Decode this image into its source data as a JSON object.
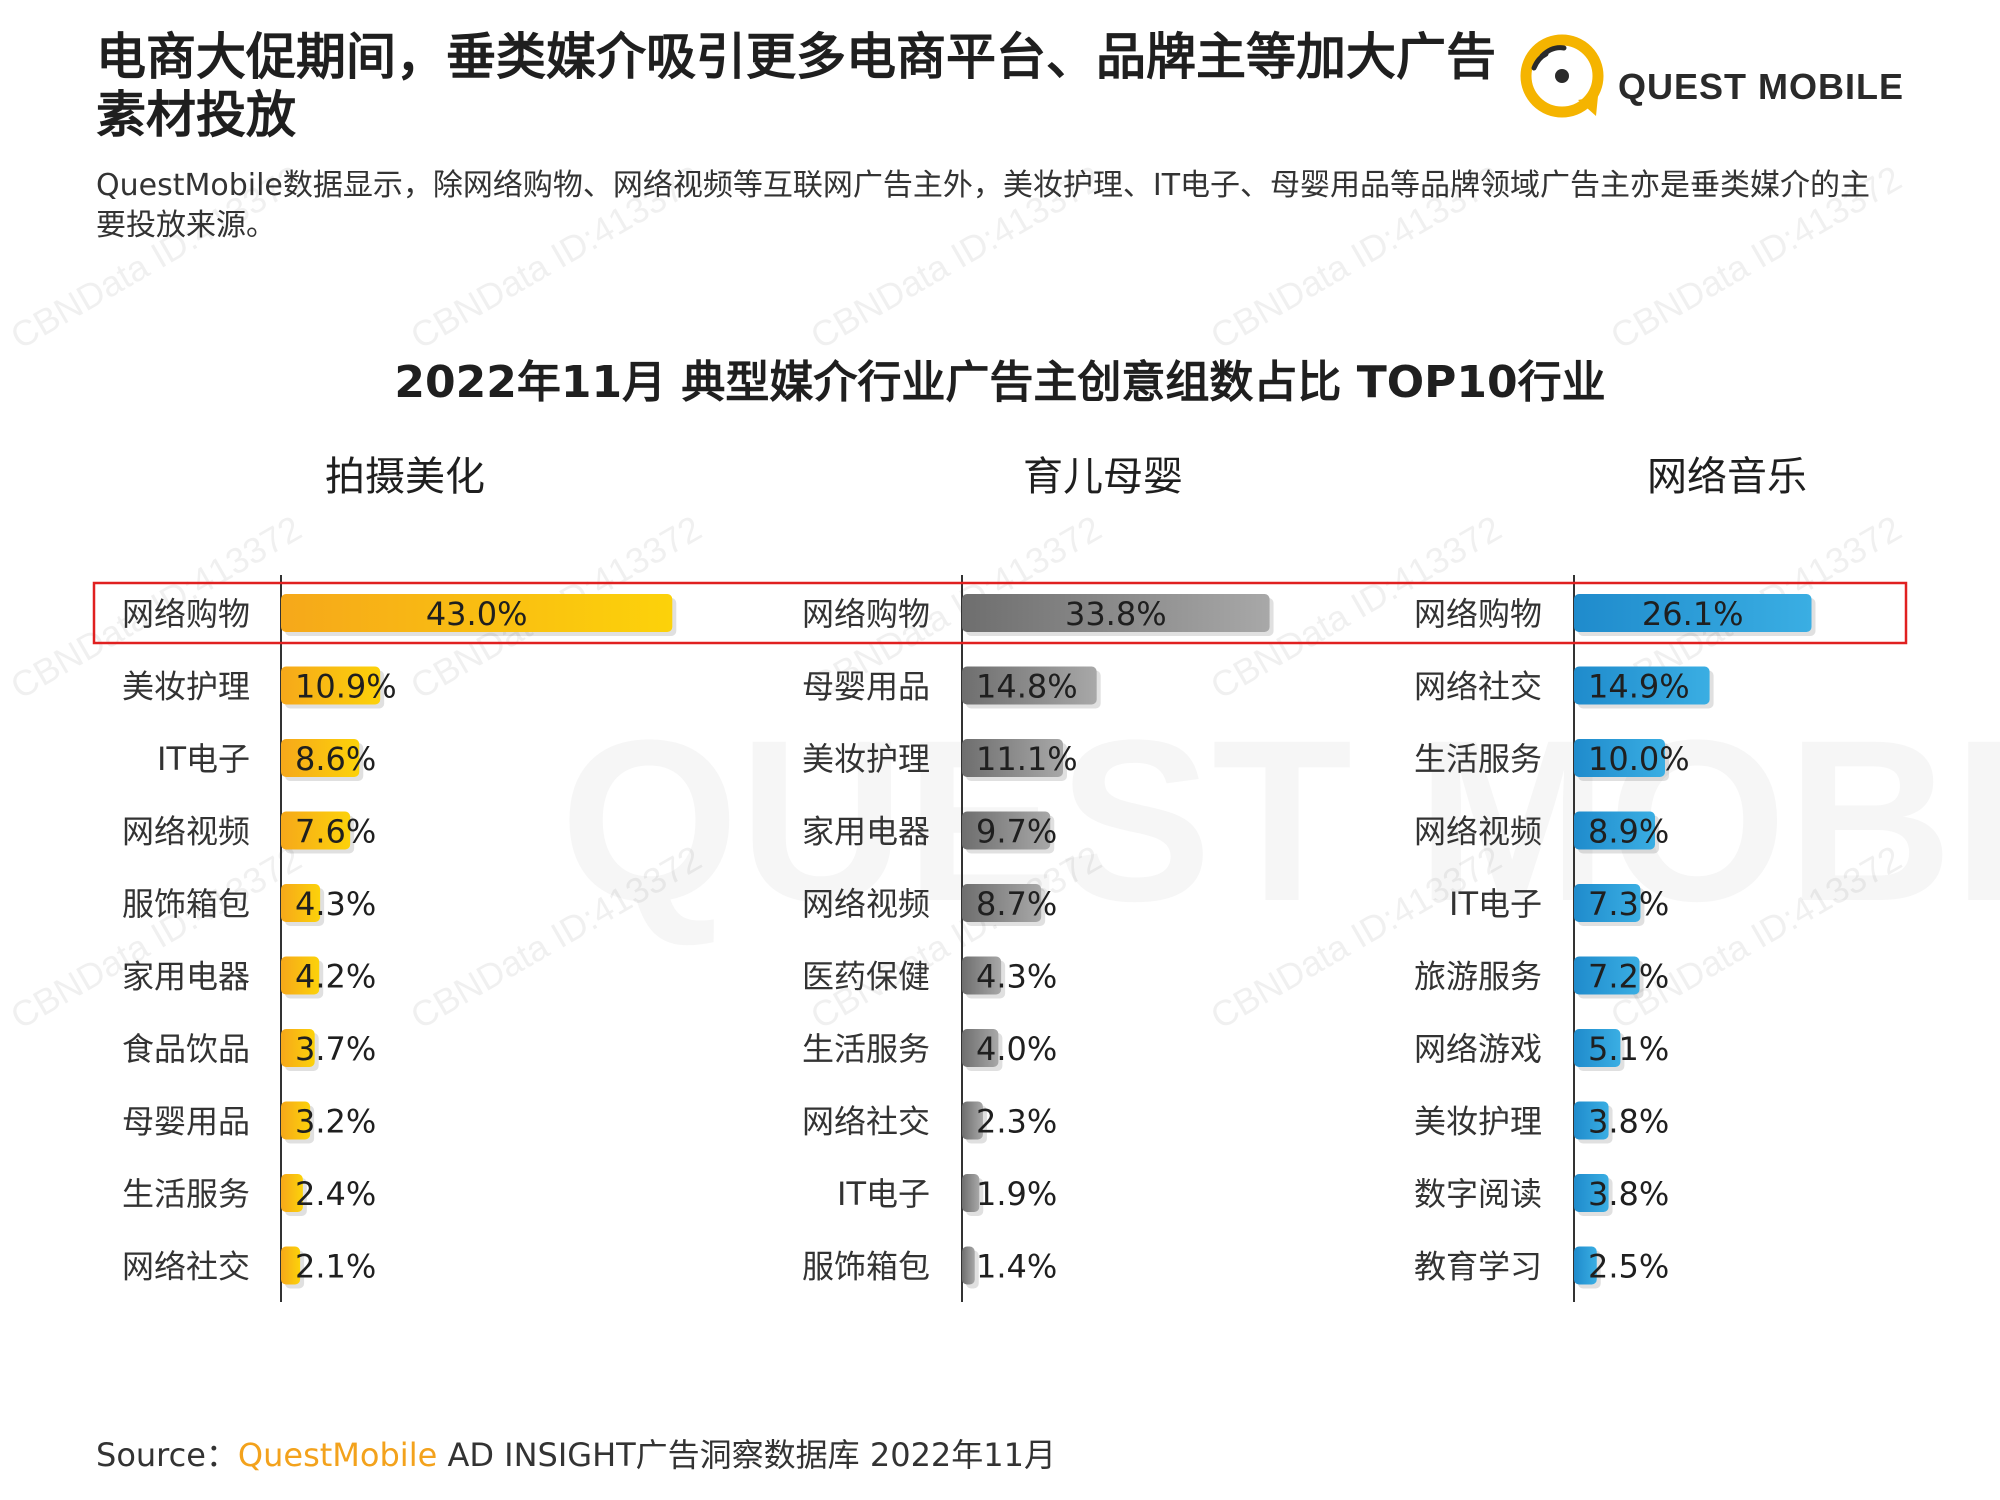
{
  "header": {
    "title": "电商大促期间，垂类媒介吸引更多电商平台、品牌主等加大广告素材投放",
    "subtitle": "QuestMobile数据显示，除网络购物、网络视频等互联网广告主外，美妆护理、IT电子、母婴用品等品牌领域广告主亦是垂类媒介的主要投放来源。"
  },
  "logo": {
    "text": "QUEST MOBILE",
    "brand_color": "#f5b400"
  },
  "watermark": {
    "text": "CBNData ID:413372",
    "big_text": "QUEST MOBILE"
  },
  "chart_title": "2022年11月 典型媒介行业广告主创意组数占比 TOP10行业",
  "highlight_color": "#e02020",
  "chart_data": [
    {
      "type": "bar",
      "orientation": "horizontal",
      "title": "拍摄美化",
      "color": "#f9b81a",
      "categories": [
        "网络购物",
        "美妆护理",
        "IT电子",
        "网络视频",
        "服饰箱包",
        "家用电器",
        "食品饮品",
        "母婴用品",
        "生活服务",
        "网络社交"
      ],
      "values": [
        43.0,
        10.9,
        8.6,
        7.6,
        4.3,
        4.2,
        3.7,
        3.2,
        2.4,
        2.1
      ],
      "labels": [
        "43.0%",
        "10.9%",
        "8.6%",
        "7.6%",
        "4.3%",
        "4.2%",
        "3.7%",
        "3.2%",
        "2.4%",
        "2.1%"
      ],
      "unit": "%"
    },
    {
      "type": "bar",
      "orientation": "horizontal",
      "title": "育儿母婴",
      "color": "#8a8a8a",
      "categories": [
        "网络购物",
        "母婴用品",
        "美妆护理",
        "家用电器",
        "网络视频",
        "医药保健",
        "生活服务",
        "网络社交",
        "IT电子",
        "服饰箱包"
      ],
      "values": [
        33.8,
        14.8,
        11.1,
        9.7,
        8.7,
        4.3,
        4.0,
        2.3,
        1.9,
        1.4
      ],
      "labels": [
        "33.8%",
        "14.8%",
        "11.1%",
        "9.7%",
        "8.7%",
        "4.3%",
        "4.0%",
        "2.3%",
        "1.9%",
        "1.4%"
      ],
      "unit": "%"
    },
    {
      "type": "bar",
      "orientation": "horizontal",
      "title": "网络音乐",
      "color": "#2f9fd8",
      "categories": [
        "网络购物",
        "网络社交",
        "生活服务",
        "网络视频",
        "IT电子",
        "旅游服务",
        "网络游戏",
        "美妆护理",
        "数字阅读",
        "教育学习"
      ],
      "values": [
        26.1,
        14.9,
        10.0,
        8.9,
        7.3,
        7.2,
        5.1,
        3.8,
        3.8,
        2.5
      ],
      "labels": [
        "26.1%",
        "14.9%",
        "10.0%",
        "8.9%",
        "7.3%",
        "7.2%",
        "5.1%",
        "3.8%",
        "3.8%",
        "2.5%"
      ],
      "unit": "%"
    }
  ],
  "source": {
    "prefix": "Source：",
    "brand": "QuestMobile",
    "rest": " AD INSIGHT广告洞察数据库 2022年11月"
  }
}
